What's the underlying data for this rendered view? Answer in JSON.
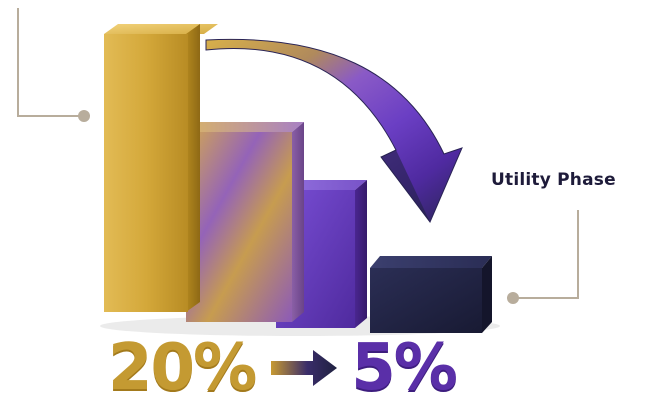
{
  "callout": {
    "label": "Utility Phase"
  },
  "stat": {
    "from": "20%",
    "to": "5%"
  },
  "colors": {
    "gold": "#d7ad3e",
    "purple": "#6a3fc4",
    "navy": "#1f2140",
    "leader_line": "#b8ad9c"
  },
  "icons": {
    "arrow": "down-right-arrow-icon",
    "stat_arrow": "right-arrow-icon"
  }
}
